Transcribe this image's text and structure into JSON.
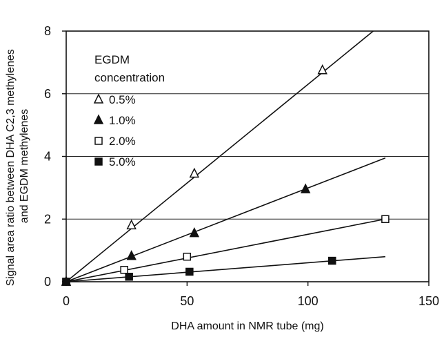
{
  "chart_data": {
    "type": "scatter",
    "xlabel": "DHA amount in NMR tube (mg)",
    "ylabel": "Signal area ratio between DHA C2,3 methylenes and EGDM methylenes",
    "ylabel_lines": [
      "Signal area ratio between DHA C2,3 methylenes",
      "and EGDM methylenes"
    ],
    "xlim": [
      0,
      150
    ],
    "ylim": [
      0,
      8
    ],
    "xticks": [
      0,
      50,
      100,
      150
    ],
    "yticks": [
      0,
      2,
      4,
      6,
      8
    ],
    "xtick_labels": [
      "0",
      "50",
      "100",
      "150"
    ],
    "ytick_labels": [
      "0",
      "2",
      "4",
      "6",
      "8"
    ],
    "grid": "horizontal",
    "legend_title_lines": [
      "EGDM",
      "concentration"
    ],
    "legend_position": "top-left",
    "series": [
      {
        "name": "0.5%",
        "marker": "open-triangle",
        "points": [
          [
            0,
            0
          ],
          [
            27,
            1.8
          ],
          [
            53,
            3.45
          ],
          [
            106,
            6.75
          ]
        ],
        "fit_line": {
          "x": [
            0,
            127
          ],
          "y": [
            0,
            8.0
          ]
        }
      },
      {
        "name": "1.0%",
        "marker": "filled-triangle",
        "points": [
          [
            0,
            0
          ],
          [
            27,
            0.82
          ],
          [
            53,
            1.55
          ],
          [
            99,
            2.95
          ]
        ],
        "fit_line": {
          "x": [
            0,
            132
          ],
          "y": [
            0,
            3.95
          ]
        }
      },
      {
        "name": "2.0%",
        "marker": "open-square",
        "points": [
          [
            0,
            0
          ],
          [
            24,
            0.38
          ],
          [
            50,
            0.8
          ],
          [
            132,
            2.0
          ]
        ],
        "fit_line": {
          "x": [
            0,
            132
          ],
          "y": [
            0,
            2.0
          ]
        }
      },
      {
        "name": "5.0%",
        "marker": "filled-square",
        "points": [
          [
            0,
            0
          ],
          [
            26,
            0.16
          ],
          [
            51,
            0.32
          ],
          [
            110,
            0.67
          ]
        ],
        "fit_line": {
          "x": [
            0,
            132
          ],
          "y": [
            0,
            0.8
          ]
        }
      }
    ]
  }
}
